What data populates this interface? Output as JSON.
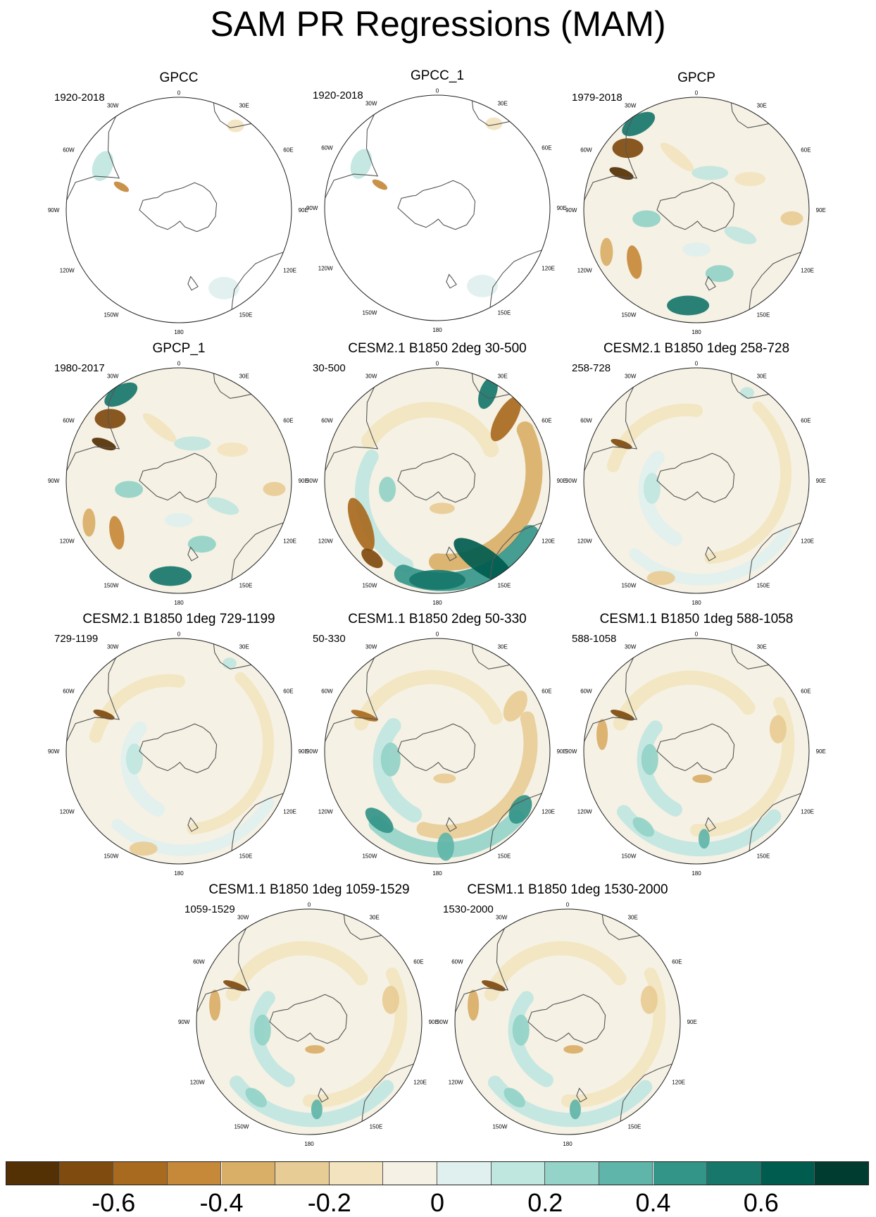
{
  "title": "SAM PR Regressions (MAM)",
  "map_labels": {
    "top": "0",
    "r30": "30E",
    "r60": "60E",
    "r90": "90E",
    "r120": "120E",
    "r150": "150E",
    "bottom": "180",
    "l150": "150W",
    "l120": "120W",
    "l90": "90W",
    "l60": "60W",
    "l30": "30W"
  },
  "panels": [
    {
      "title": "GPCC",
      "period": "1920-2018",
      "coverage": "land-only",
      "pattern": "gpcc"
    },
    {
      "title": "GPCC_1",
      "period": "1920-2018",
      "coverage": "land-only",
      "pattern": "gpcc"
    },
    {
      "title": "GPCP",
      "period": "1979-2018",
      "coverage": "global",
      "pattern": "gpcp"
    },
    {
      "title": "GPCP_1",
      "period": "1980-2017",
      "coverage": "global",
      "pattern": "gpcp"
    },
    {
      "title": "CESM2.1 B1850 2deg 30-500",
      "period": "30-500",
      "coverage": "global",
      "pattern": "strong-spiral"
    },
    {
      "title": "CESM2.1 B1850 1deg 258-728",
      "period": "258-728",
      "coverage": "global",
      "pattern": "weak"
    },
    {
      "title": "CESM2.1 B1850 1deg 729-1199",
      "period": "729-1199",
      "coverage": "global",
      "pattern": "weak"
    },
    {
      "title": "CESM1.1 B1850 2deg 50-330",
      "period": "50-330",
      "coverage": "global",
      "pattern": "spiral"
    },
    {
      "title": "CESM1.1 B1850 1deg 588-1058",
      "period": "588-1058",
      "coverage": "global",
      "pattern": "moderate"
    },
    {
      "title": "CESM1.1 B1850 1deg 1059-1529",
      "period": "1059-1529",
      "coverage": "global",
      "pattern": "moderate"
    },
    {
      "title": "CESM1.1 B1850 1deg 1530-2000",
      "period": "1530-2000",
      "coverage": "global",
      "pattern": "moderate"
    }
  ],
  "colorbar": {
    "colors": [
      "#543005",
      "#7f4b0f",
      "#a86a1e",
      "#c6893a",
      "#d9ae66",
      "#e8cc95",
      "#f3e4bf",
      "#f5f1e4",
      "#e0f0ee",
      "#c0e6e0",
      "#93d3c8",
      "#5fb5a9",
      "#339488",
      "#17776b",
      "#015c50",
      "#003c30"
    ],
    "tick_labels": [
      "-0.6",
      "-0.4",
      "-0.2",
      "0",
      "0.2",
      "0.4",
      "0.6"
    ]
  }
}
